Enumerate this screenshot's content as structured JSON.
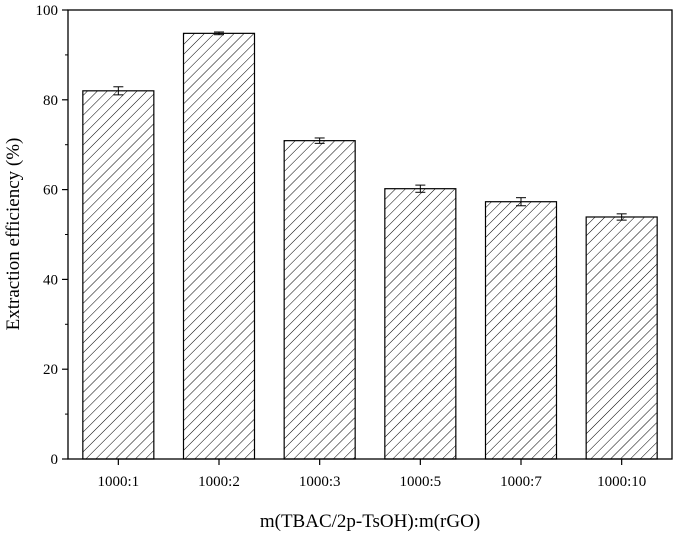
{
  "chart_data": {
    "type": "bar",
    "categories": [
      "1000:1",
      "1000:2",
      "1000:3",
      "1000:5",
      "1000:7",
      "1000:10"
    ],
    "values": [
      82.0,
      94.8,
      70.9,
      60.2,
      57.3,
      53.9
    ],
    "errors": [
      0.9,
      0.3,
      0.6,
      0.8,
      0.9,
      0.7
    ],
    "xlabel": "m(TBAC/2p-TsOH):m(rGO)",
    "ylabel": "Extraction efficiency (%)",
    "ylim": [
      0,
      100
    ],
    "yticks": [
      0,
      20,
      40,
      60,
      80,
      100
    ],
    "grid": false,
    "bar_fill": "hatched",
    "colors": {
      "bar_stroke": "#000000",
      "hatch": "#000000",
      "axis": "#000000"
    }
  }
}
